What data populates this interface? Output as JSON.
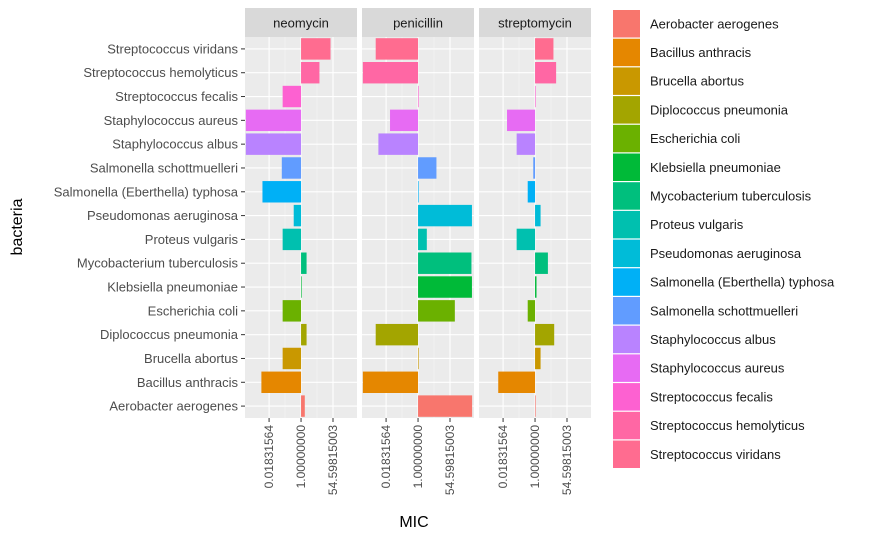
{
  "chart_data": {
    "type": "bar",
    "orientation": "horizontal",
    "facet_by": "antibiotic",
    "xlabel": "MIC",
    "ylabel": "bacteria",
    "x_scale": "log",
    "x_ticks": [
      0.01831564,
      1.0,
      54.59815003
    ],
    "x_tick_labels": [
      "0.01831564",
      "1.00000000",
      "54.59815003"
    ],
    "xlim": [
      0.0009,
      1100
    ],
    "bar_baseline": 1,
    "grid": true,
    "legend_position": "right",
    "categories": [
      "Aerobacter aerogenes",
      "Bacillus anthracis",
      "Brucella abortus",
      "Diplococcus pneumonia",
      "Escherichia coli",
      "Klebsiella pneumoniae",
      "Mycobacterium tuberculosis",
      "Proteus vulgaris",
      "Pseudomonas aeruginosa",
      "Salmonella (Eberthella) typhosa",
      "Salmonella schottmuelleri",
      "Staphylococcus albus",
      "Staphylococcus aureus",
      "Streptococcus fecalis",
      "Streptococcus hemolyticus",
      "Streptococcus viridans"
    ],
    "colors": [
      "#F8766D",
      "#E58700",
      "#C99800",
      "#A3A500",
      "#6BB100",
      "#00BA38",
      "#00BF7D",
      "#00C0AF",
      "#00BCD8",
      "#00B0F6",
      "#619CFF",
      "#B983FF",
      "#E76BF3",
      "#FD61D1",
      "#FF67A4",
      "#FF6C90"
    ],
    "panels": [
      {
        "name": "neomycin",
        "values": [
          1.6,
          0.007,
          0.1,
          2.0,
          0.1,
          1.0,
          2.0,
          0.1,
          0.4,
          0.008,
          0.09,
          0.001,
          0.001,
          0.1,
          10.0,
          40.0
        ]
      },
      {
        "name": "penicillin",
        "values": [
          870,
          0.001,
          1.0,
          0.005,
          100,
          850,
          800,
          3.0,
          850,
          1.0,
          10.0,
          0.007,
          0.03,
          1.0,
          0.001,
          0.005
        ]
      },
      {
        "name": "streptomycin",
        "values": [
          1.0,
          0.01,
          2.0,
          11.0,
          0.4,
          1.2,
          5.0,
          0.1,
          2.0,
          0.4,
          0.8,
          0.1,
          0.03,
          1.0,
          14.0,
          10.0
        ]
      }
    ],
    "legend_title": ""
  }
}
